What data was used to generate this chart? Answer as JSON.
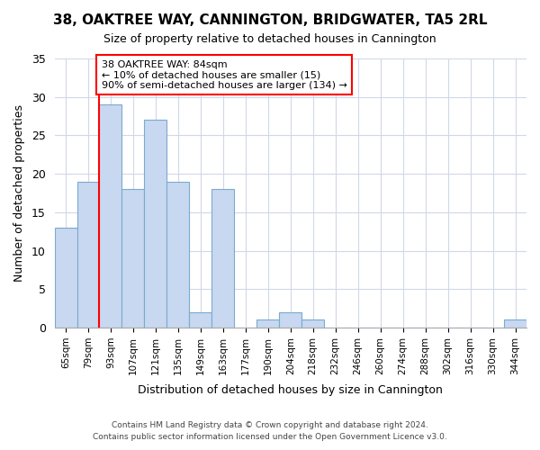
{
  "title": "38, OAKTREE WAY, CANNINGTON, BRIDGWATER, TA5 2RL",
  "subtitle": "Size of property relative to detached houses in Cannington",
  "xlabel": "Distribution of detached houses by size in Cannington",
  "ylabel": "Number of detached properties",
  "bar_color": "#c8d8f0",
  "bar_edge_color": "#7aaad0",
  "bins": [
    "65sqm",
    "79sqm",
    "93sqm",
    "107sqm",
    "121sqm",
    "135sqm",
    "149sqm",
    "163sqm",
    "177sqm",
    "190sqm",
    "204sqm",
    "218sqm",
    "232sqm",
    "246sqm",
    "260sqm",
    "274sqm",
    "288sqm",
    "302sqm",
    "316sqm",
    "330sqm",
    "344sqm"
  ],
  "values": [
    13,
    19,
    29,
    18,
    27,
    19,
    2,
    18,
    0,
    1,
    2,
    1,
    0,
    0,
    0,
    0,
    0,
    0,
    0,
    0,
    1
  ],
  "property_line_label": "38 OAKTREE WAY: 84sqm",
  "annotation_line1": "← 10% of detached houses are smaller (15)",
  "annotation_line2": "90% of semi-detached houses are larger (134) →",
  "ylim": [
    0,
    35
  ],
  "yticks": [
    0,
    5,
    10,
    15,
    20,
    25,
    30,
    35
  ],
  "footer1": "Contains HM Land Registry data © Crown copyright and database right 2024.",
  "footer2": "Contains public sector information licensed under the Open Government Licence v3.0.",
  "background_color": "#ffffff",
  "grid_color": "#d0d8e8"
}
